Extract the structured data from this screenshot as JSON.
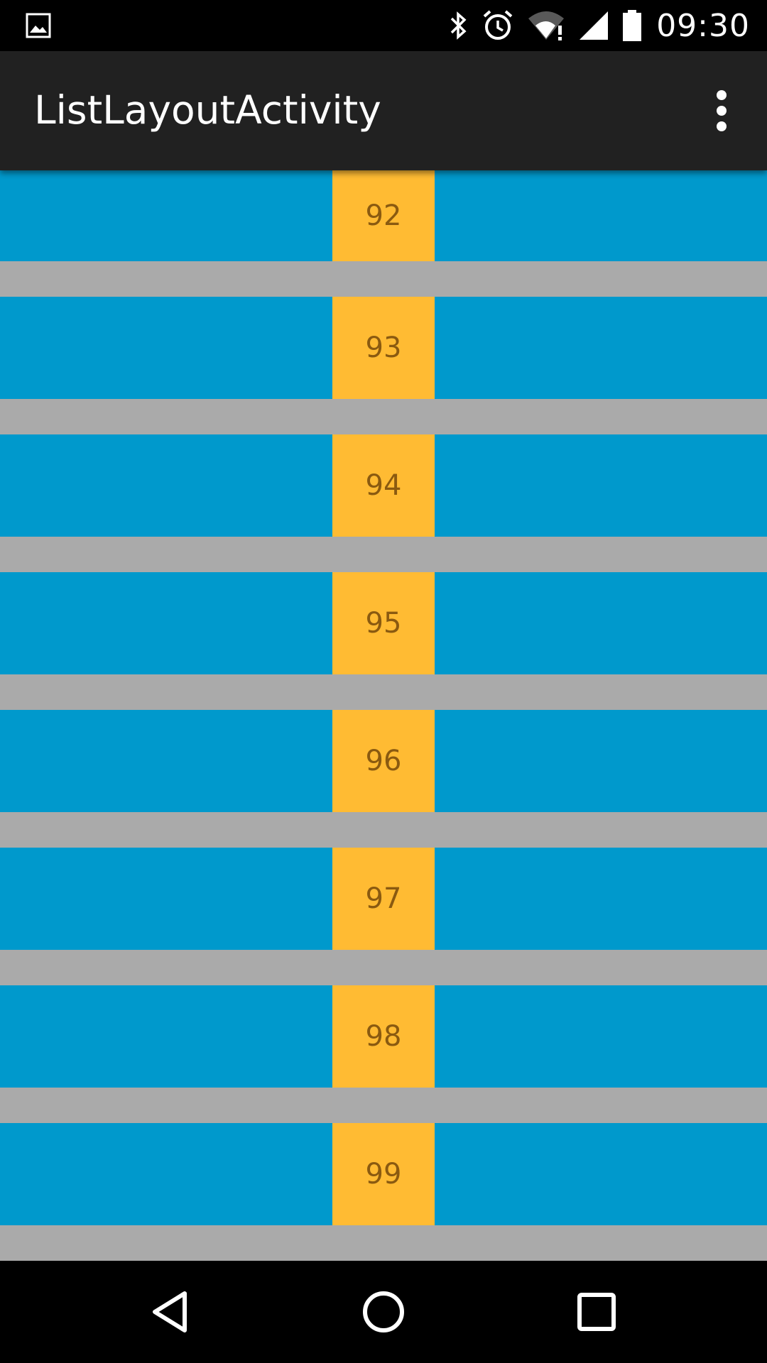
{
  "status_bar": {
    "time": "09:30",
    "icons": [
      "gallery-icon",
      "bluetooth-icon",
      "alarm-icon",
      "wifi-icon",
      "signal-icon",
      "battery-icon"
    ]
  },
  "app_bar": {
    "title": "ListLayoutActivity",
    "menu_icon": "overflow-menu-icon"
  },
  "list": {
    "items": [
      {
        "label": "92"
      },
      {
        "label": "93"
      },
      {
        "label": "94"
      },
      {
        "label": "95"
      },
      {
        "label": "96"
      },
      {
        "label": "97"
      },
      {
        "label": "98"
      },
      {
        "label": "99"
      }
    ]
  },
  "nav_bar": {
    "buttons": [
      "back-icon",
      "home-icon",
      "recents-icon"
    ]
  },
  "colors": {
    "row_background": "#0099cc",
    "cell_background": "#ffbb33",
    "divider": "#aaaaaa",
    "app_bar": "#212121"
  }
}
